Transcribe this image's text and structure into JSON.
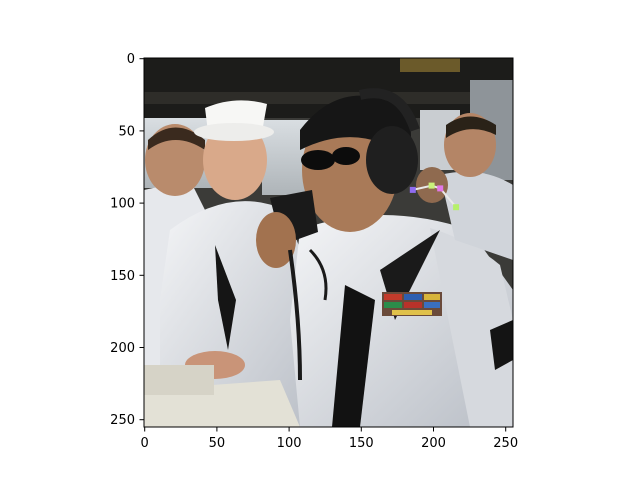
{
  "figure": {
    "image_content": "photograph of sailors in white uniforms on a ship bridge; one wearing sunglasses and a headset speaks into a handset",
    "colors": {
      "frame": "#000000",
      "background": "#ffffff",
      "keypoint_marks": [
        "#8f6cf2",
        "#c9f27a",
        "#e277e8",
        "#b6f06a"
      ]
    }
  },
  "axes": {
    "xlim": [
      0,
      255
    ],
    "ylim": [
      255,
      0
    ],
    "x_ticks": [
      "0",
      "50",
      "100",
      "150",
      "200",
      "250"
    ],
    "y_ticks": [
      "0",
      "50",
      "100",
      "150",
      "200",
      "250"
    ],
    "x_tick_values": [
      0,
      50,
      100,
      150,
      200,
      250
    ],
    "y_tick_values": [
      0,
      50,
      100,
      150,
      200,
      250
    ]
  },
  "keypoints": [
    {
      "x": 186,
      "y": 91
    },
    {
      "x": 199,
      "y": 88
    },
    {
      "x": 205,
      "y": 90
    },
    {
      "x": 216,
      "y": 103
    }
  ]
}
